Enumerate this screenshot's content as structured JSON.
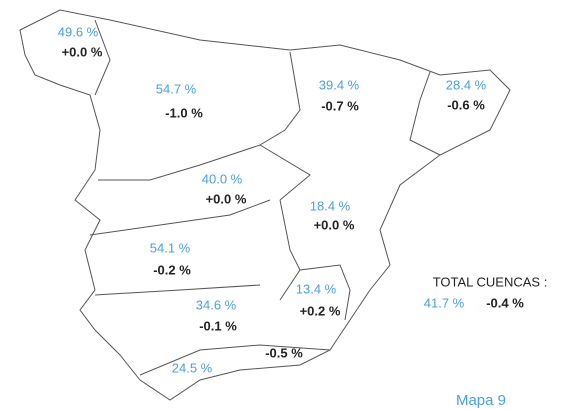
{
  "regions": [
    {
      "value": "49.6 %",
      "change": "+0.0 %"
    },
    {
      "value": "54.7 %",
      "change": "-1.0 %"
    },
    {
      "value": "39.4 %",
      "change": "-0.7 %"
    },
    {
      "value": "28.4 %",
      "change": "-0.6 %"
    },
    {
      "value": "40.0 %",
      "change": "+0.0 %"
    },
    {
      "value": "18.4 %",
      "change": "+0.0 %"
    },
    {
      "value": "54.1 %",
      "change": "-0.2 %"
    },
    {
      "value": "13.4 %",
      "change": "+0.2 %"
    },
    {
      "value": "34.6 %",
      "change": "-0.1 %"
    },
    {
      "value": "24.5 %",
      "change": "-0.5 %"
    }
  ],
  "total": {
    "label": "TOTAL CUENCAS :",
    "value": "41.7 %",
    "change": "-0.4 %"
  },
  "caption": "Mapa 9"
}
